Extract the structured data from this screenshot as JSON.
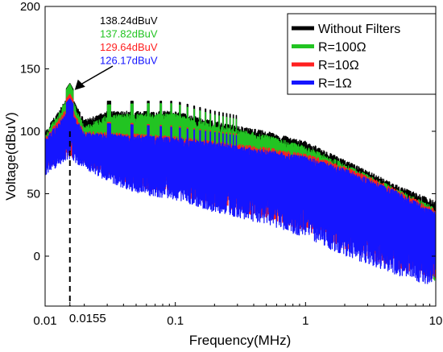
{
  "chart_data": {
    "type": "line",
    "title": "",
    "xlabel": "Frequency(MHz)",
    "ylabel": "Voltage(dBuV)",
    "x_scale": "log",
    "xlim": [
      0.01,
      10
    ],
    "ylim": [
      -40,
      200
    ],
    "x_ticks": [
      {
        "value": 0.01,
        "label": "0.01"
      },
      {
        "value": 0.0155,
        "label": "0.0155"
      },
      {
        "value": 0.1,
        "label": "0.1"
      },
      {
        "value": 1,
        "label": "1"
      },
      {
        "value": 10,
        "label": "10"
      }
    ],
    "y_ticks": [
      {
        "value": 0,
        "label": "0"
      },
      {
        "value": 50,
        "label": "50"
      },
      {
        "value": 100,
        "label": "100"
      },
      {
        "value": 150,
        "label": "150"
      },
      {
        "value": 200,
        "label": "200"
      }
    ],
    "grid": false,
    "legend_position": "top-right",
    "series": [
      {
        "name": "Without Filters",
        "color": "#000000",
        "x": [
          0.01,
          0.0155,
          0.02,
          0.03,
          0.05,
          0.1,
          0.2,
          0.5,
          1,
          2,
          5,
          10
        ],
        "envelope_upper": [
          108,
          138.24,
          117,
          124,
          124,
          124,
          116,
          108,
          100,
          85,
          65,
          52
        ],
        "floor": [
          95,
          98,
          98,
          97,
          95,
          93,
          90,
          85,
          75,
          60,
          40,
          30
        ]
      },
      {
        "name": "R=100Ω",
        "color": "#22c422",
        "x": [
          0.01,
          0.0155,
          0.02,
          0.03,
          0.05,
          0.1,
          0.2,
          0.5,
          1,
          2,
          5,
          10
        ],
        "envelope_upper": [
          105,
          137.82,
          112,
          121,
          122,
          122,
          113,
          105,
          96,
          82,
          62,
          47
        ],
        "floor": [
          85,
          90,
          88,
          85,
          80,
          75,
          65,
          50,
          30,
          15,
          0,
          -20
        ]
      },
      {
        "name": "R=10Ω",
        "color": "#ff2020",
        "x": [
          0.01,
          0.0155,
          0.02,
          0.03,
          0.05,
          0.1,
          0.2,
          0.5,
          1,
          2,
          5,
          10
        ],
        "envelope_upper": [
          103,
          129.64,
          108,
          107,
          106,
          104,
          100,
          95,
          90,
          80,
          62,
          45
        ],
        "floor": [
          70,
          80,
          75,
          65,
          55,
          50,
          40,
          30,
          20,
          5,
          -10,
          -20
        ]
      },
      {
        "name": "R=1Ω",
        "color": "#1515ff",
        "x": [
          0.01,
          0.0155,
          0.02,
          0.03,
          0.05,
          0.1,
          0.2,
          0.5,
          1,
          2,
          5,
          10
        ],
        "envelope_upper": [
          102,
          126.17,
          107,
          106,
          105,
          103,
          99,
          93,
          88,
          78,
          60,
          43
        ],
        "floor": [
          65,
          78,
          70,
          60,
          50,
          45,
          35,
          25,
          15,
          0,
          -15,
          -25
        ]
      }
    ],
    "annotations": {
      "marker_x": 0.0155,
      "values": [
        {
          "text": "138.24dBuV",
          "color": "#000000"
        },
        {
          "text": "137.82dBuV",
          "color": "#22c422"
        },
        {
          "text": "129.64dBuV",
          "color": "#ff2020"
        },
        {
          "text": "126.17dBuV",
          "color": "#1515ff"
        }
      ]
    }
  }
}
